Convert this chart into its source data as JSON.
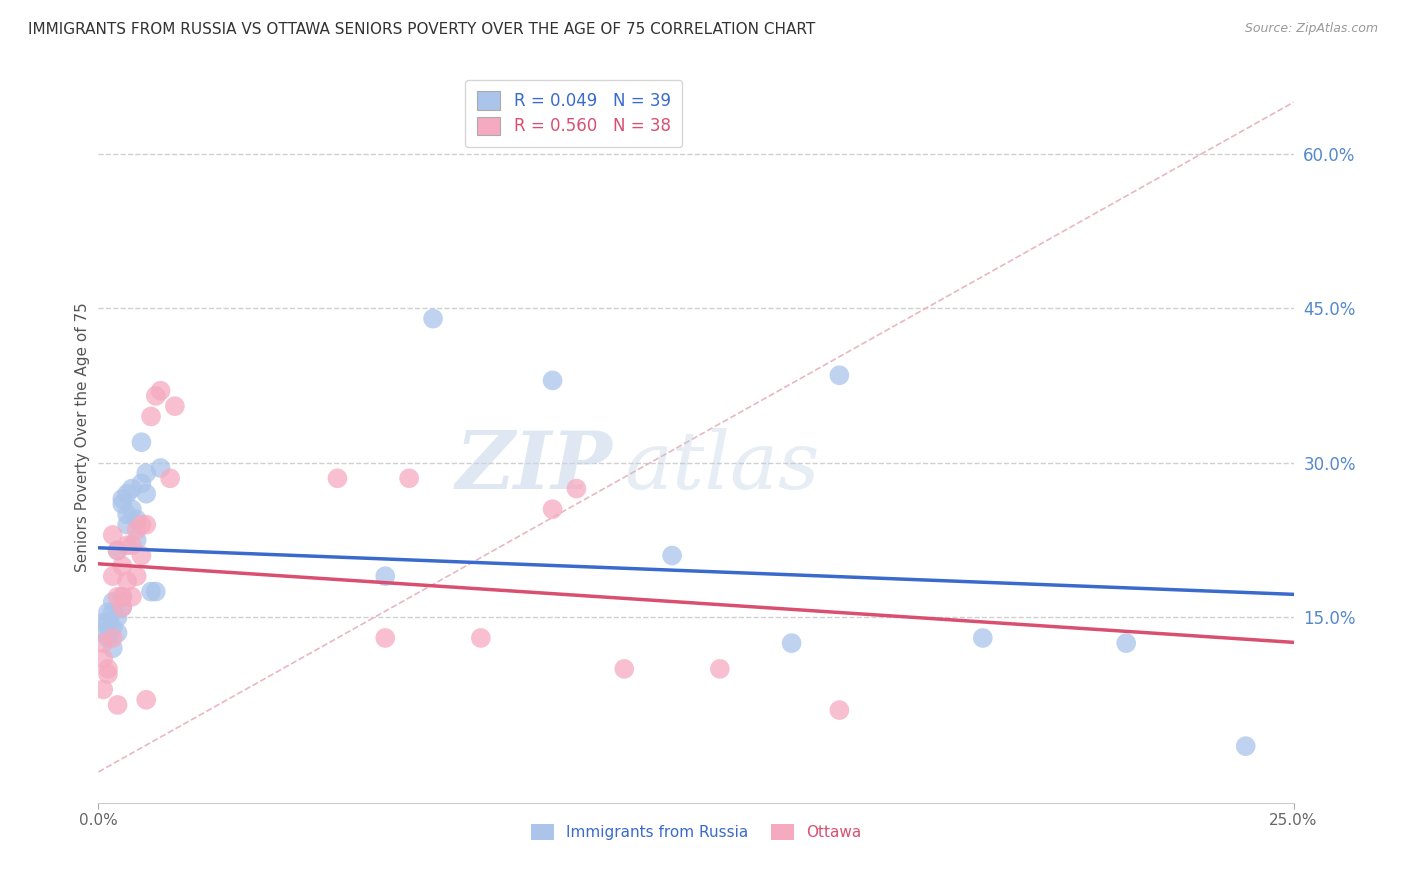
{
  "title": "IMMIGRANTS FROM RUSSIA VS OTTAWA SENIORS POVERTY OVER THE AGE OF 75 CORRELATION CHART",
  "source": "Source: ZipAtlas.com",
  "ylabel": "Seniors Poverty Over the Age of 75",
  "xlim": [
    0.0,
    0.25
  ],
  "ylim": [
    -0.03,
    0.68
  ],
  "xticks": [
    0.0,
    0.25
  ],
  "yticks_right": [
    0.15,
    0.3,
    0.45,
    0.6
  ],
  "grid_color": "#d0d0d0",
  "background_color": "#ffffff",
  "blue_scatter_x": [
    0.001,
    0.001,
    0.002,
    0.002,
    0.002,
    0.003,
    0.003,
    0.003,
    0.003,
    0.004,
    0.004,
    0.004,
    0.005,
    0.005,
    0.005,
    0.005,
    0.006,
    0.006,
    0.006,
    0.007,
    0.007,
    0.008,
    0.008,
    0.009,
    0.009,
    0.01,
    0.01,
    0.011,
    0.012,
    0.013,
    0.06,
    0.07,
    0.095,
    0.12,
    0.145,
    0.155,
    0.185,
    0.215,
    0.24
  ],
  "blue_scatter_y": [
    0.135,
    0.145,
    0.13,
    0.145,
    0.155,
    0.12,
    0.14,
    0.155,
    0.165,
    0.135,
    0.15,
    0.215,
    0.16,
    0.17,
    0.26,
    0.265,
    0.25,
    0.24,
    0.27,
    0.255,
    0.275,
    0.225,
    0.245,
    0.28,
    0.32,
    0.27,
    0.29,
    0.175,
    0.175,
    0.295,
    0.19,
    0.44,
    0.38,
    0.21,
    0.125,
    0.385,
    0.13,
    0.125,
    0.025
  ],
  "pink_scatter_x": [
    0.001,
    0.001,
    0.001,
    0.002,
    0.002,
    0.003,
    0.003,
    0.003,
    0.004,
    0.004,
    0.004,
    0.005,
    0.005,
    0.005,
    0.006,
    0.006,
    0.007,
    0.007,
    0.008,
    0.008,
    0.009,
    0.009,
    0.01,
    0.01,
    0.011,
    0.012,
    0.013,
    0.015,
    0.016,
    0.05,
    0.06,
    0.065,
    0.08,
    0.095,
    0.1,
    0.11,
    0.13,
    0.155
  ],
  "pink_scatter_y": [
    0.11,
    0.125,
    0.08,
    0.095,
    0.1,
    0.13,
    0.19,
    0.23,
    0.17,
    0.215,
    0.065,
    0.16,
    0.2,
    0.17,
    0.185,
    0.22,
    0.17,
    0.22,
    0.19,
    0.235,
    0.24,
    0.21,
    0.07,
    0.24,
    0.345,
    0.365,
    0.37,
    0.285,
    0.355,
    0.285,
    0.13,
    0.285,
    0.13,
    0.255,
    0.275,
    0.1,
    0.1,
    0.06
  ],
  "blue_R": 0.049,
  "blue_N": 39,
  "pink_R": 0.56,
  "pink_N": 38,
  "blue_color": "#aac4ea",
  "pink_color": "#f5aabf",
  "blue_line_color": "#3a6bcc",
  "pink_line_color": "#d94f70",
  "ref_line_color": "#e8b8c0",
  "legend_labels": [
    "Immigrants from Russia",
    "Ottawa"
  ],
  "watermark_zip": "ZIP",
  "watermark_atlas": "atlas",
  "title_fontsize": 11,
  "label_fontsize": 10,
  "tick_fontsize": 11,
  "source_fontsize": 9
}
